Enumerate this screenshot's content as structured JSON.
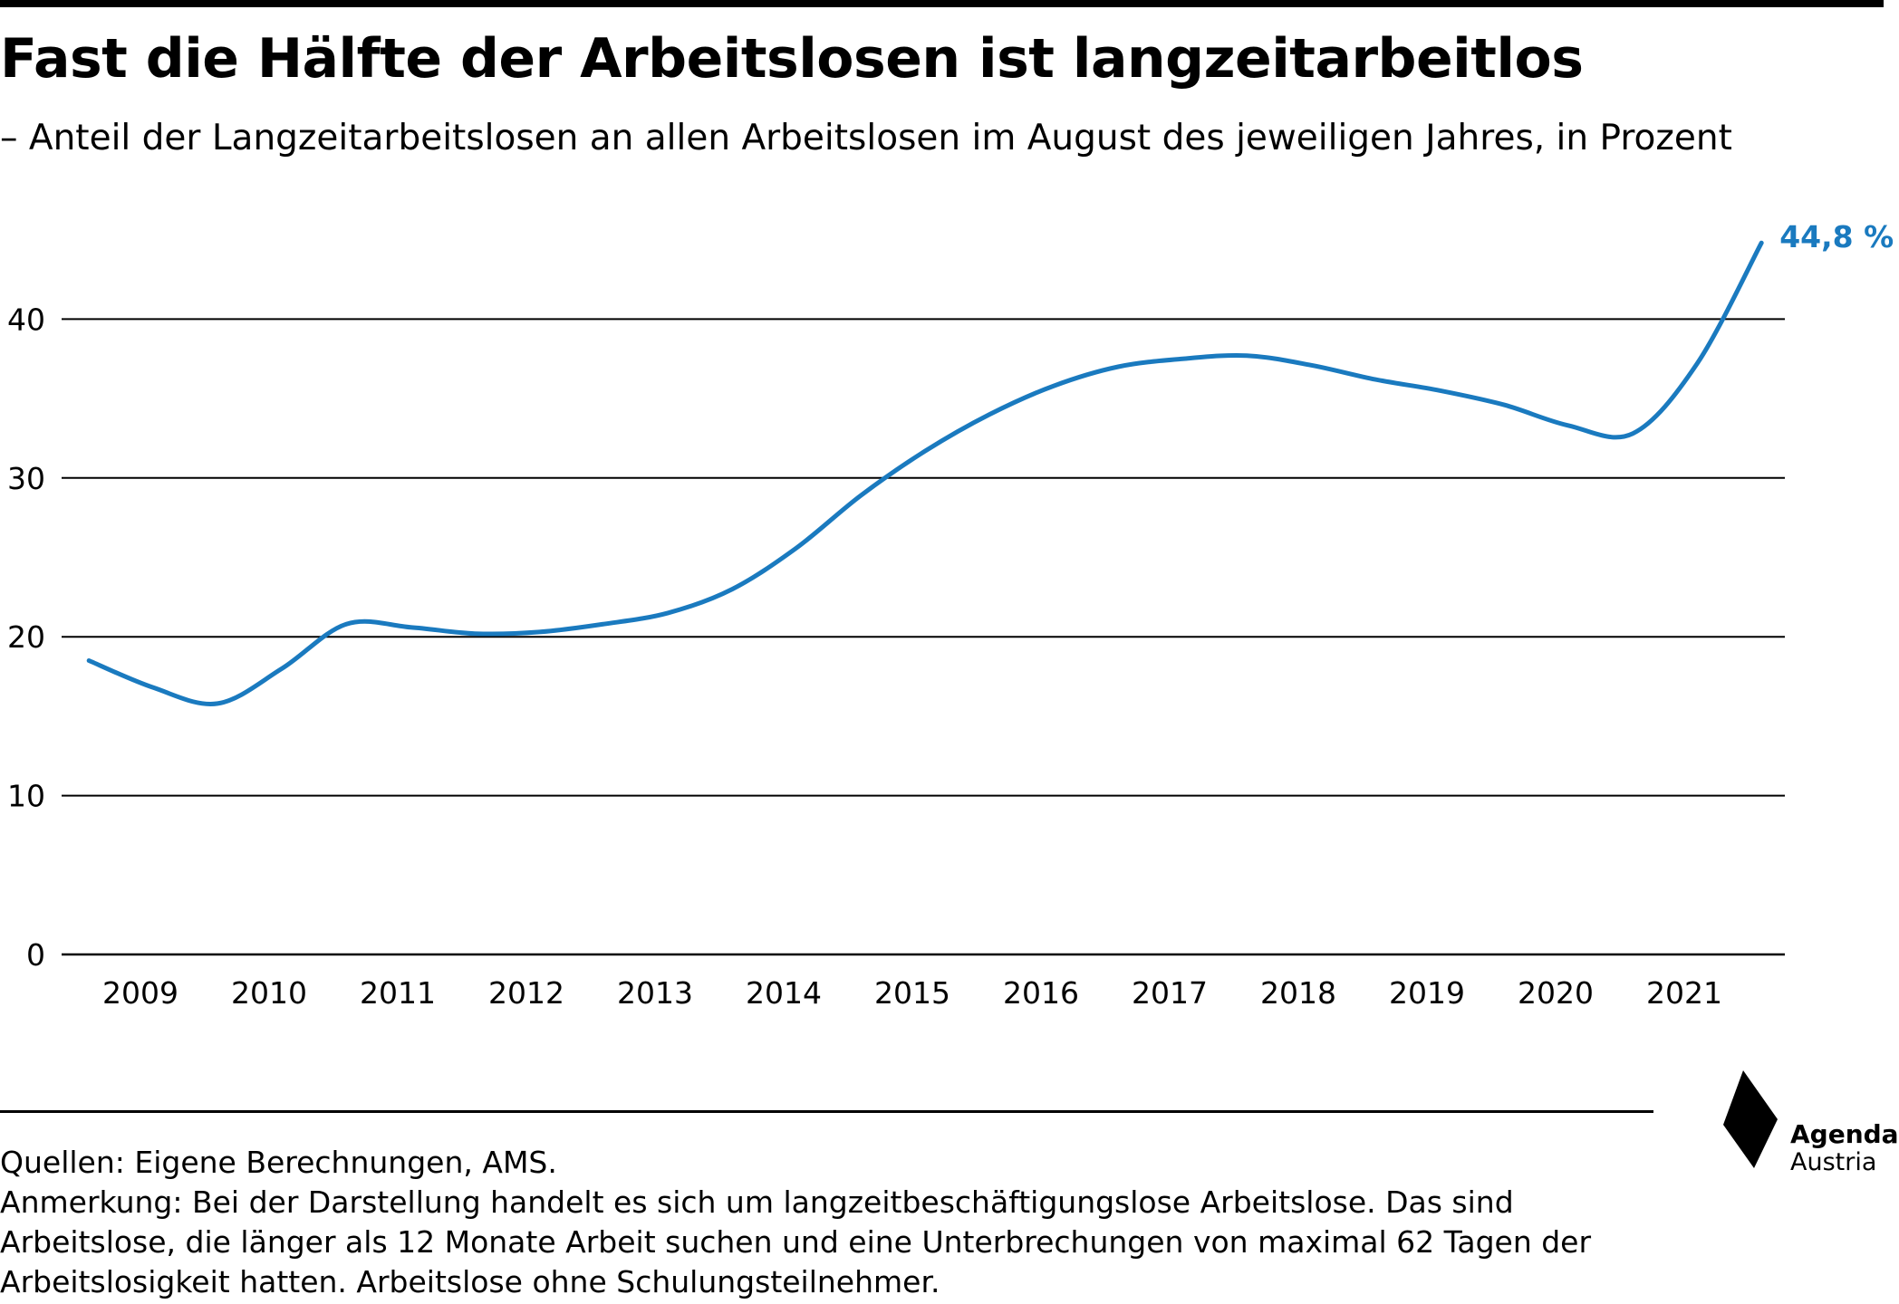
{
  "chart_data": {
    "type": "line",
    "title": "Fast die Hälfte der Arbeitslosen ist langzeitarbeitlos",
    "subtitle": "– Anteil der Langzeitarbeitslosen an allen Arbeitslosen im August des jeweiligen Jahres, in Prozent",
    "categories": [
      "2009",
      "2010",
      "2011",
      "2012",
      "2013",
      "2014",
      "2015",
      "2016",
      "2017",
      "2018",
      "2019",
      "2020",
      "2021"
    ],
    "y_ticks": [
      "0",
      "10",
      "20",
      "30",
      "40"
    ],
    "ylim": [
      0,
      45
    ],
    "grid": true,
    "legend": "none",
    "series": [
      {
        "color": "#1a7abf",
        "x": [
          2008.6,
          2009.1,
          2009.6,
          2010.1,
          2010.6,
          2011.1,
          2011.6,
          2012.1,
          2012.6,
          2013.1,
          2013.6,
          2014.1,
          2014.6,
          2015.1,
          2015.6,
          2016.1,
          2016.6,
          2017.1,
          2017.6,
          2018.1,
          2018.6,
          2019.1,
          2019.6,
          2020.1,
          2020.6,
          2021.1,
          2021.6
        ],
        "values": [
          18.5,
          16.8,
          15.8,
          18.0,
          20.8,
          20.6,
          20.2,
          20.3,
          20.8,
          21.5,
          23.0,
          25.6,
          28.9,
          31.7,
          34.0,
          35.8,
          37.0,
          37.5,
          37.7,
          37.1,
          36.2,
          35.5,
          34.6,
          33.3,
          32.8,
          37.2,
          44.8
        ]
      }
    ],
    "end_label": "44,8 %"
  },
  "footer": {
    "sources": "Quellen: Eigene Berechnungen, AMS.",
    "note": "Anmerkung: Bei der Darstellung handelt es sich um langzeitbeschäftigungslose Arbeitslose. Das sind Arbeitslose, die länger als 12 Monate Arbeit suchen und eine Unterbrechungen von maximal 62 Tagen der Arbeitslosigkeit hatten. Arbeitslose ohne Schulungsteilnehmer."
  },
  "logo": {
    "line1": "Agenda",
    "line2": "Austria"
  },
  "colors": {
    "line": "#1a7abf",
    "grid": "#000000",
    "text": "#000000"
  }
}
